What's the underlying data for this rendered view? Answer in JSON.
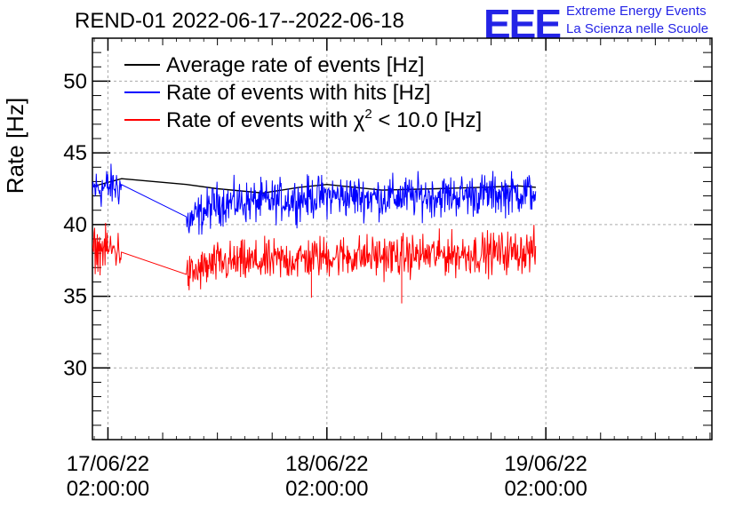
{
  "brand": {
    "logo_text": "EEE",
    "line1": "Extreme Energy Events",
    "line2": "La Scienza nelle Scuole",
    "color": "#2323e6"
  },
  "chart_data": {
    "type": "line",
    "title": "REND-01 2022-06-17--2022-06-18",
    "ylabel": "Rate [Hz]",
    "xlabel": "",
    "ylim": [
      25,
      53
    ],
    "yticks": [
      30,
      35,
      40,
      45,
      50
    ],
    "xlim_hours": [
      -1.7,
      66.2
    ],
    "xticks": [
      {
        "hour": 0,
        "label_line1": "17/06/22",
        "label_line2": "02:00:00"
      },
      {
        "hour": 24,
        "label_line1": "18/06/22",
        "label_line2": "02:00:00"
      },
      {
        "hour": 48,
        "label_line1": "19/06/22",
        "label_line2": "02:00:00"
      }
    ],
    "grid": true,
    "legend_position": "top-left",
    "series": [
      {
        "name": "Average rate of events [Hz]",
        "legend_label": "Average rate of events [Hz]",
        "color": "#000000",
        "x": [
          -2.0,
          1.5,
          8.6,
          12.0,
          17.0,
          21.0,
          24.0,
          30.0,
          36.0,
          41.0,
          45.0,
          46.9
        ],
        "y": [
          42.6,
          43.2,
          42.8,
          42.5,
          42.2,
          42.6,
          42.8,
          42.4,
          42.5,
          42.6,
          42.7,
          42.6
        ],
        "noise": 0
      },
      {
        "name": "Rate of events with hits [Hz]",
        "legend_label": "Rate of events with hits [Hz]",
        "color": "#0000ff",
        "x": [
          -2.0,
          1.5,
          8.6,
          12.0,
          17.0,
          21.0,
          24.0,
          30.0,
          36.0,
          41.0,
          45.0,
          46.9
        ],
        "y": [
          42.5,
          42.7,
          40.1,
          41.5,
          41.6,
          41.8,
          42.0,
          41.9,
          42.0,
          42.1,
          42.2,
          42.3
        ],
        "noise": 0.9,
        "noisy_segments": [
          [
            -2.0,
            1.5
          ],
          [
            8.6,
            46.9
          ]
        ]
      },
      {
        "name": "Rate of events with chi2 < 10.0 [Hz]",
        "legend_label": "Rate of events with χ² < 10.0 [Hz]",
        "legend_label_main": "Rate of events with χ",
        "legend_label_sup": "2",
        "legend_label_tail": " < 10.0 [Hz]",
        "color": "#ff0000",
        "x": [
          -2.0,
          1.5,
          8.6,
          12.0,
          17.0,
          21.0,
          24.0,
          30.0,
          36.0,
          41.0,
          45.0,
          46.9
        ],
        "y": [
          38.3,
          38.2,
          36.4,
          37.3,
          37.4,
          37.6,
          37.8,
          37.8,
          37.9,
          38.0,
          38.1,
          38.2
        ],
        "noise": 0.9,
        "noisy_segments": [
          [
            -2.0,
            1.5
          ],
          [
            8.6,
            46.9
          ]
        ],
        "outliers": [
          {
            "x": 22.3,
            "y": 34.9
          },
          {
            "x": 32.2,
            "y": 34.5
          }
        ]
      }
    ]
  }
}
